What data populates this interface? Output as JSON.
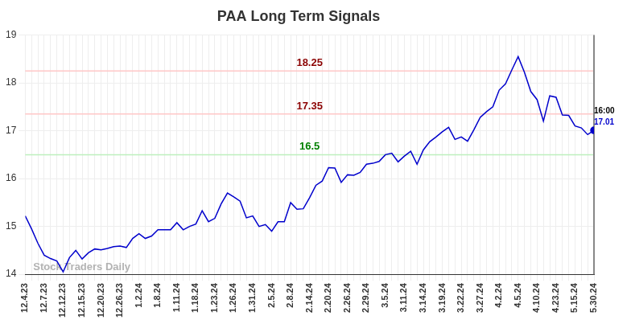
{
  "chart_data": {
    "type": "line",
    "title": "PAA Long Term Signals",
    "categories": [
      "12.4.23",
      null,
      null,
      "12.7.23",
      null,
      null,
      "12.12.23",
      null,
      null,
      "12.15.23",
      null,
      null,
      "12.20.23",
      null,
      null,
      "12.26.23",
      null,
      null,
      "1.2.24",
      null,
      null,
      "1.8.24",
      null,
      null,
      "1.11.24",
      null,
      null,
      "1.18.24",
      null,
      null,
      "1.23.24",
      null,
      null,
      "1.26.24",
      null,
      null,
      "1.31.24",
      null,
      null,
      "2.5.24",
      null,
      null,
      "2.8.24",
      null,
      null,
      "2.14.24",
      null,
      null,
      "2.20.24",
      null,
      null,
      "2.26.24",
      null,
      null,
      "2.29.24",
      null,
      null,
      "3.5.24",
      null,
      null,
      "3.11.24",
      null,
      null,
      "3.14.24",
      null,
      null,
      "3.19.24",
      null,
      null,
      "3.22.24",
      null,
      null,
      "3.27.24",
      null,
      null,
      "4.2.24",
      null,
      null,
      "4.5.24",
      null,
      null,
      "4.10.24",
      null,
      null,
      "4.23.24",
      null,
      null,
      "5.15.24",
      null,
      null,
      "5.30.24"
    ],
    "values": [
      15.22,
      14.95,
      14.65,
      14.4,
      14.33,
      14.28,
      14.05,
      14.35,
      14.5,
      14.32,
      14.45,
      14.53,
      14.51,
      14.54,
      14.58,
      14.59,
      14.56,
      14.75,
      14.85,
      14.75,
      14.8,
      14.93,
      14.93,
      14.93,
      15.08,
      14.93,
      15.0,
      15.05,
      15.33,
      15.1,
      15.17,
      15.47,
      15.7,
      15.62,
      15.53,
      15.18,
      15.22,
      15.0,
      15.04,
      14.9,
      15.1,
      15.1,
      15.5,
      15.36,
      15.37,
      15.6,
      15.86,
      15.95,
      16.23,
      16.22,
      15.92,
      16.08,
      16.07,
      16.13,
      16.3,
      16.32,
      16.36,
      16.5,
      16.53,
      16.35,
      16.47,
      16.57,
      16.3,
      16.6,
      16.77,
      16.87,
      16.98,
      17.07,
      16.82,
      16.87,
      16.78,
      17.02,
      17.28,
      17.4,
      17.5,
      17.85,
      17.98,
      18.27,
      18.55,
      18.22,
      17.82,
      17.65,
      17.2,
      17.73,
      17.7,
      17.33,
      17.32,
      17.1,
      17.06,
      16.92,
      17.01
    ],
    "color": "#0000cc",
    "ylim": [
      14,
      19
    ],
    "yticks": [
      14,
      15,
      16,
      17,
      18,
      19
    ],
    "grid": true,
    "levels": [
      {
        "value": 18.25,
        "color": "#8b0000"
      },
      {
        "value": 17.35,
        "color": "#8b0000"
      },
      {
        "value": 16.5,
        "color": "#008000"
      }
    ],
    "last_time": "16:00",
    "watermark": "Stock Traders Daily"
  }
}
